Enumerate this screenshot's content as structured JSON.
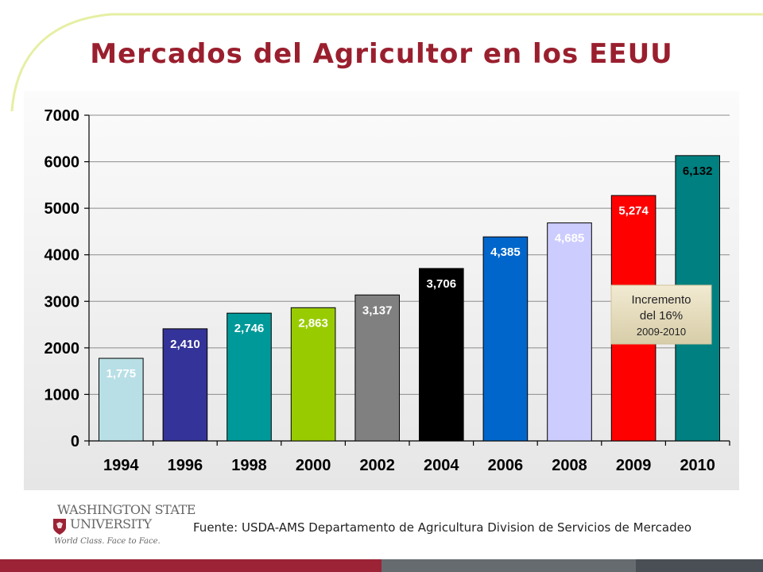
{
  "slide": {
    "title": "Mercados del Agricultor en los EEUU",
    "source": "Fuente: USDA-AMS Departamento de Agricultura Division de Servicios de Mercadeo"
  },
  "logo": {
    "line1": "WASHINGTON STATE",
    "line2": "UNIVERSITY",
    "tagline": "World Class. Face to Face."
  },
  "colors": {
    "title": "#9a1f2e",
    "footer_bar": [
      "#9b2335",
      "#666b70",
      "#4a4f55"
    ]
  },
  "chart_data": {
    "type": "bar",
    "title": "",
    "xlabel": "",
    "ylabel": "",
    "categories": [
      "1994",
      "1996",
      "1998",
      "2000",
      "2002",
      "2004",
      "2006",
      "2008",
      "2009",
      "2010"
    ],
    "values": [
      1775,
      2410,
      2746,
      2863,
      3137,
      3706,
      4385,
      4685,
      5274,
      6132
    ],
    "data_labels": [
      "1,775",
      "2,410",
      "2,746",
      "2,863",
      "3,137",
      "3,706",
      "4,385",
      "4,685",
      "5,274",
      "6,132"
    ],
    "bar_colors": [
      "#b8dfe6",
      "#333399",
      "#009999",
      "#99cc00",
      "#808080",
      "#000000",
      "#0066cc",
      "#ccccff",
      "#ff0000",
      "#008080"
    ],
    "label_colors": [
      "#ffffff",
      "#ffffff",
      "#ffffff",
      "#ffffff",
      "#ffffff",
      "#ffffff",
      "#ffffff",
      "#ffffff",
      "#ffffff",
      "#000000"
    ],
    "ylim": [
      0,
      7000
    ],
    "yticks": [
      0,
      1000,
      2000,
      3000,
      4000,
      5000,
      6000,
      7000
    ],
    "grid": true,
    "annotation": {
      "line1": "Incremento",
      "line2": "del 16%",
      "line3": "2009-2010"
    }
  }
}
